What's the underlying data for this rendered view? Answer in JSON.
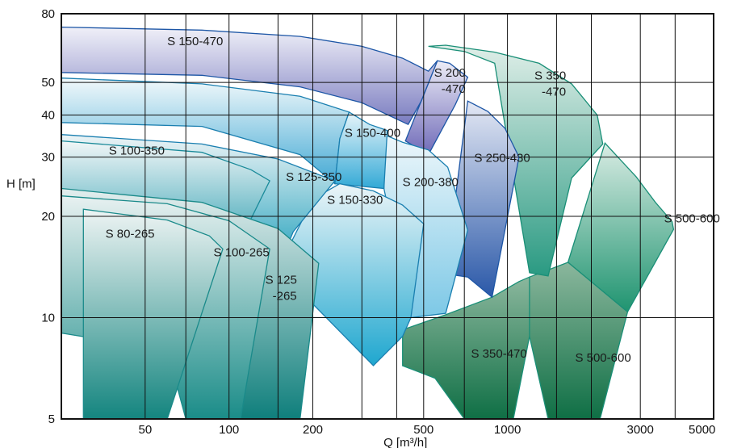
{
  "chart_data": {
    "type": "area",
    "title": "",
    "xlabel": "Q [m³/h]",
    "ylabel": "H [m]",
    "x_scale": "log",
    "y_scale": "log",
    "xlim": [
      25,
      5500
    ],
    "ylim": [
      5,
      80
    ],
    "x_ticks": [
      50,
      100,
      200,
      500,
      1000,
      3000,
      5000
    ],
    "x_tick_labels": [
      "50",
      "100",
      "200",
      "500",
      "1000",
      "3000",
      "5000"
    ],
    "y_ticks": [
      5,
      10,
      20,
      30,
      40,
      50,
      80
    ],
    "y_tick_labels": [
      "5",
      "10",
      "20",
      "30",
      "40",
      "50",
      "80"
    ],
    "x_grid": [
      50,
      70,
      100,
      150,
      200,
      300,
      400,
      500,
      700,
      1000,
      1500,
      2000,
      3000,
      4000
    ],
    "y_grid": [
      10,
      20,
      30,
      40,
      50
    ],
    "grid": true,
    "regions": [
      {
        "name": "S 500-600",
        "label": "S 500-600",
        "label_at": [
          3650,
          19.2
        ],
        "color_top": "#d9ece4",
        "color_bottom": "#1f9470",
        "stroke": "#1a8f77",
        "polygon": [
          [
            1650,
            14.6
          ],
          [
            2240,
            33.0
          ],
          [
            2900,
            26.2
          ],
          [
            3400,
            22.0
          ],
          [
            3900,
            19.3
          ],
          [
            3950,
            18.3
          ],
          [
            2700,
            10.4
          ],
          [
            1650,
            14.6
          ]
        ]
      },
      {
        "name": "S 500-600 (lower)",
        "label": "S 500-600",
        "label_at": [
          1750,
          7.4
        ],
        "color_top": "#8bb79d",
        "color_bottom": "#0f6f45",
        "stroke": "#1a8f77",
        "polygon": [
          [
            1200,
            13.2
          ],
          [
            1650,
            14.6
          ],
          [
            2700,
            10.4
          ],
          [
            2150,
            5.0
          ],
          [
            1400,
            5.0
          ],
          [
            1200,
            8.8
          ],
          [
            1200,
            13.2
          ]
        ]
      },
      {
        "name": "S 350-470",
        "label": "S 350",
        "label_line2": "-470",
        "label_at": [
          1250,
          51.0
        ],
        "color_top": "#dfeee8",
        "color_bottom": "#2a9a82",
        "stroke": "#1a8f77",
        "polygon": [
          [
            1200,
            13.6
          ],
          [
            1400,
            13.3
          ],
          [
            1700,
            26.0
          ],
          [
            2200,
            32.8
          ],
          [
            2100,
            40.0
          ],
          [
            1700,
            49.5
          ],
          [
            1300,
            57.0
          ],
          [
            900,
            61.5
          ],
          [
            600,
            64.5
          ],
          [
            520,
            64.0
          ],
          [
            700,
            61.8
          ],
          [
            900,
            57.0
          ],
          [
            1200,
            13.6
          ]
        ]
      },
      {
        "name": "S 350-470 (lower)",
        "label": "S 350-470",
        "label_at": [
          740,
          7.6
        ],
        "color_top": "#8bb79d",
        "color_bottom": "#0f6f45",
        "stroke": "#1a8f77",
        "polygon": [
          [
            420,
            9.2
          ],
          [
            600,
            10.2
          ],
          [
            880,
            11.5
          ],
          [
            1100,
            12.8
          ],
          [
            1200,
            13.2
          ],
          [
            1200,
            8.8
          ],
          [
            1050,
            5.0
          ],
          [
            700,
            5.0
          ],
          [
            550,
            6.6
          ],
          [
            420,
            7.2
          ],
          [
            420,
            9.2
          ]
        ]
      },
      {
        "name": "S 250-430",
        "label": "S 250-430",
        "label_at": [
          760,
          29.0
        ],
        "color_top": "#e4e8f4",
        "color_bottom": "#2a58a8",
        "stroke": "#1d56a6",
        "polygon": [
          [
            720,
            44.0
          ],
          [
            850,
            41.0
          ],
          [
            980,
            36.5
          ],
          [
            1100,
            30.0
          ],
          [
            880,
            11.5
          ],
          [
            720,
            13.2
          ],
          [
            600,
            13.5
          ],
          [
            720,
            44.0
          ]
        ]
      },
      {
        "name": "S 200-470",
        "label": "S 200",
        "label_line2": "-470",
        "label_at": [
          545,
          52.0
        ],
        "color_top": "#ededf7",
        "color_bottom": "#6f6ab8",
        "stroke": "#1d56a6",
        "polygon": [
          [
            560,
            58.0
          ],
          [
            620,
            57.0
          ],
          [
            720,
            51.8
          ],
          [
            650,
            43.0
          ],
          [
            520,
            30.5
          ],
          [
            430,
            33.5
          ],
          [
            490,
            44.0
          ],
          [
            560,
            58.0
          ]
        ]
      },
      {
        "name": "S 150-470",
        "label": "S 150-470",
        "label_at": [
          60,
          64.5
        ],
        "color_top": "#f0f0f8",
        "color_bottom": "#7a7cc0",
        "stroke": "#1d56a6",
        "polygon": [
          [
            25,
            73.0
          ],
          [
            80,
            71.5
          ],
          [
            180,
            68.5
          ],
          [
            300,
            64.0
          ],
          [
            420,
            59.0
          ],
          [
            520,
            54.0
          ],
          [
            560,
            58.0
          ],
          [
            490,
            44.0
          ],
          [
            440,
            37.5
          ],
          [
            300,
            43.5
          ],
          [
            180,
            48.5
          ],
          [
            80,
            52.5
          ],
          [
            25,
            53.5
          ],
          [
            25,
            73.0
          ]
        ]
      },
      {
        "name": "S 200-380",
        "label": "S 200-380",
        "label_at": [
          420,
          24.6
        ],
        "color_top": "#eef7fb",
        "color_bottom": "#7cc8e6",
        "stroke": "#1a7fb0",
        "polygon": [
          [
            360,
            35.0
          ],
          [
            420,
            33.2
          ],
          [
            520,
            31.5
          ],
          [
            610,
            28.0
          ],
          [
            720,
            18.2
          ],
          [
            600,
            10.3
          ],
          [
            450,
            10.0
          ],
          [
            360,
            24.2
          ],
          [
            360,
            35.0
          ]
        ]
      },
      {
        "name": "S 150-400",
        "label": "S 150-400",
        "label_at": [
          260,
          34.5
        ],
        "color_top": "#f2f9fb",
        "color_bottom": "#43a9d4",
        "stroke": "#1a7fb0",
        "polygon": [
          [
            25,
            51.5
          ],
          [
            80,
            49.5
          ],
          [
            180,
            45.5
          ],
          [
            270,
            40.8
          ],
          [
            250,
            34.0
          ],
          [
            240,
            25.0
          ],
          [
            180,
            30.5
          ],
          [
            80,
            37.0
          ],
          [
            25,
            38.0
          ],
          [
            25,
            51.5
          ]
        ]
      },
      {
        "name": "S 150-400 (lower band)",
        "label": "",
        "label_at": null,
        "color_top": "#e8f5fa",
        "color_bottom": "#33a9d6",
        "stroke": "#1a7fb0",
        "polygon": [
          [
            270,
            40.8
          ],
          [
            320,
            37.5
          ],
          [
            370,
            36.0
          ],
          [
            360,
            24.2
          ],
          [
            240,
            25.0
          ],
          [
            250,
            34.0
          ],
          [
            270,
            40.8
          ]
        ]
      },
      {
        "name": "S 150-330",
        "label": "S 150-330",
        "label_at": [
          225,
          21.8
        ],
        "color_top": "#ecf5f8",
        "color_bottom": "#1fa7cf",
        "stroke": "#1a7fb0",
        "polygon": [
          [
            250,
            25.0
          ],
          [
            330,
            23.8
          ],
          [
            420,
            21.6
          ],
          [
            500,
            19.0
          ],
          [
            450,
            10.0
          ],
          [
            420,
            8.8
          ],
          [
            330,
            7.2
          ],
          [
            150,
            14.0
          ],
          [
            200,
            22.5
          ],
          [
            250,
            25.0
          ]
        ]
      },
      {
        "name": "S 125-350",
        "label": "S 125-350",
        "label_at": [
          160,
          25.5
        ],
        "color_top": "#edf4f6",
        "color_bottom": "#1e9fbb",
        "stroke": "#1a7fb0",
        "polygon": [
          [
            25,
            35.0
          ],
          [
            80,
            32.8
          ],
          [
            150,
            29.6
          ],
          [
            240,
            25.5
          ],
          [
            170,
            18.0
          ],
          [
            150,
            14.0
          ],
          [
            100,
            16.5
          ],
          [
            25,
            18.0
          ],
          [
            25,
            35.0
          ]
        ]
      },
      {
        "name": "S 100-350",
        "label": "S 100-350",
        "label_at": [
          37,
          30.5
        ],
        "color_top": "#f1f6f7",
        "color_bottom": "#45a9b9",
        "stroke": "#1a8a99",
        "polygon": [
          [
            25,
            33.5
          ],
          [
            80,
            31.0
          ],
          [
            120,
            27.5
          ],
          [
            140,
            25.5
          ],
          [
            110,
            17.0
          ],
          [
            25,
            17.0
          ],
          [
            25,
            33.5
          ]
        ]
      },
      {
        "name": "S 125-265",
        "label": "S 125",
        "label_line2": "-265",
        "label_at": [
          135,
          12.6
        ],
        "color_top": "#e3eeee",
        "color_bottom": "#0f7f7c",
        "stroke": "#1a8a8a",
        "polygon": [
          [
            25,
            24.2
          ],
          [
            80,
            22.0
          ],
          [
            150,
            18.4
          ],
          [
            210,
            14.5
          ],
          [
            180,
            5.0
          ],
          [
            110,
            5.0
          ],
          [
            100,
            8.0
          ],
          [
            25,
            9.0
          ],
          [
            25,
            24.2
          ]
        ]
      },
      {
        "name": "S 100-265",
        "label": "S 100-265",
        "label_at": [
          88,
          15.2
        ],
        "color_top": "#e8f1f1",
        "color_bottom": "#1a8c88",
        "stroke": "#1a8a8a",
        "polygon": [
          [
            25,
            23.0
          ],
          [
            60,
            21.8
          ],
          [
            100,
            19.4
          ],
          [
            140,
            16.0
          ],
          [
            110,
            5.0
          ],
          [
            70,
            5.0
          ],
          [
            60,
            8.0
          ],
          [
            25,
            9.0
          ],
          [
            25,
            23.0
          ]
        ]
      },
      {
        "name": "S 80-265",
        "label": "S 80-265",
        "label_at": [
          36,
          17.3
        ],
        "color_top": "#eef4f4",
        "color_bottom": "#14857f",
        "stroke": "#1a8a8a",
        "polygon": [
          [
            30,
            21.0
          ],
          [
            60,
            19.5
          ],
          [
            85,
            17.5
          ],
          [
            95,
            16.0
          ],
          [
            60,
            5.0
          ],
          [
            30,
            5.0
          ],
          [
            30,
            21.0
          ]
        ]
      }
    ]
  }
}
